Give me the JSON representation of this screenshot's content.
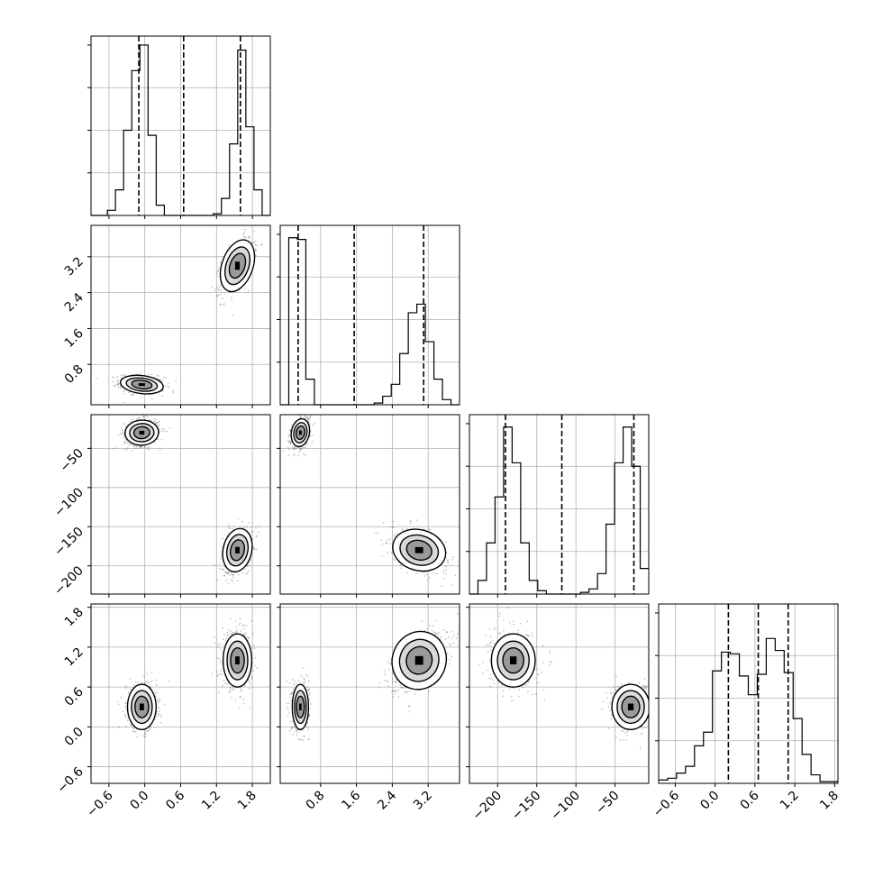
{
  "chart_data": {
    "type": "corner",
    "title": "",
    "parameters": [
      {
        "range": [
          -0.9,
          2.1
        ],
        "ticks": [
          "−0.6",
          "0.0",
          "0.6",
          "1.2",
          "1.8"
        ],
        "tick_values": [
          -0.6,
          0.0,
          0.6,
          1.2,
          1.8
        ],
        "quantiles": [
          -0.1,
          0.65,
          1.6
        ]
      },
      {
        "range": [
          -0.1,
          3.9
        ],
        "ticks": [
          "0.8",
          "1.6",
          "2.4",
          "3.2"
        ],
        "tick_values": [
          0.8,
          1.6,
          2.4,
          3.2
        ],
        "quantiles": [
          0.3,
          1.55,
          3.1
        ]
      },
      {
        "range": [
          -236,
          -7
        ],
        "ticks": [
          "−200",
          "−150",
          "−100",
          "−50"
        ],
        "tick_values": [
          -200,
          -150,
          -100,
          -50
        ],
        "quantiles": [
          -190,
          -118,
          -26
        ]
      },
      {
        "range": [
          -0.85,
          1.85
        ],
        "ticks": [
          "−0.6",
          "0.0",
          "0.6",
          "1.2",
          "1.8"
        ],
        "tick_values": [
          -0.6,
          0.0,
          0.6,
          1.2,
          1.8
        ],
        "quantiles": [
          0.2,
          0.65,
          1.1
        ]
      }
    ],
    "histograms": [
      [
        0,
        0,
        0.03,
        0.15,
        0.5,
        0.85,
        1.0,
        0.47,
        0.06,
        0,
        0,
        0,
        0,
        0,
        0,
        0.01,
        0.1,
        0.42,
        0.97,
        0.52,
        0.15,
        0
      ],
      [
        0,
        0.98,
        0.97,
        0.15,
        0,
        0,
        0,
        0,
        0,
        0,
        0,
        0.01,
        0.05,
        0.12,
        0.3,
        0.54,
        0.59,
        0.37,
        0.15,
        0.03,
        0
      ],
      [
        0,
        0.08,
        0.3,
        0.57,
        0.98,
        0.77,
        0.3,
        0.08,
        0.02,
        0,
        0,
        0,
        0,
        0.01,
        0.03,
        0.12,
        0.41,
        0.77,
        0.98,
        0.75,
        0.15
      ],
      [
        0.02,
        0.03,
        0.06,
        0.1,
        0.22,
        0.3,
        0.66,
        0.77,
        0.76,
        0.63,
        0.52,
        0.64,
        0.85,
        0.78,
        0.65,
        0.38,
        0.17,
        0.05,
        0.01,
        0.01
      ]
    ],
    "clusters": [
      {
        "p0": -0.05,
        "p1": 0.35,
        "p2": -30,
        "p3": 0.3
      },
      {
        "p0": 1.55,
        "p1": 3.0,
        "p2": -180,
        "p3": 1.0
      }
    ],
    "pair_spreads": {
      "1,0": [
        [
          0.18,
          0.1,
          -0.2
        ],
        [
          0.13,
          0.3,
          0.55
        ]
      ],
      "2,0": [
        [
          0.14,
          8,
          0.1
        ],
        [
          0.12,
          14,
          0.35
        ]
      ],
      "3,0": [
        [
          0.12,
          0.17,
          0.0
        ],
        [
          0.12,
          0.2,
          0.0
        ]
      ],
      "2,1": [
        [
          0.1,
          9,
          0.3
        ],
        [
          0.3,
          13,
          -0.45
        ]
      ],
      "3,1": [
        [
          0.09,
          0.17,
          0.0
        ],
        [
          0.3,
          0.22,
          0.55
        ]
      ],
      "3,2": [
        [
          12,
          0.17,
          0.0
        ],
        [
          14,
          0.2,
          0.0
        ]
      ]
    },
    "grid": true
  }
}
